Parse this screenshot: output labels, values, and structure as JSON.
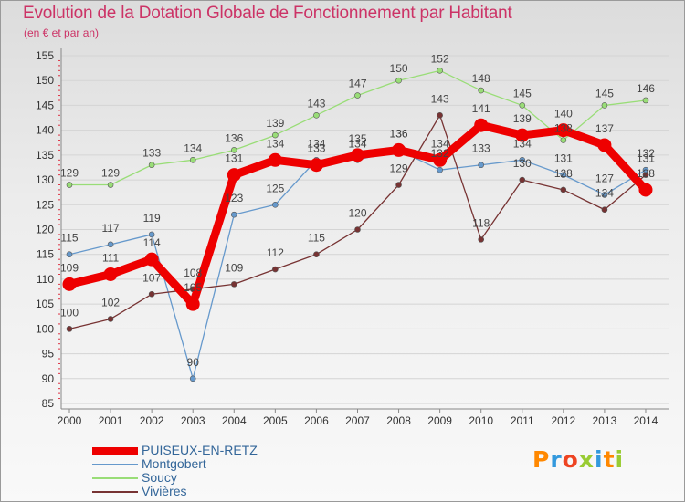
{
  "chart_data": {
    "type": "line",
    "title": "Evolution de la Dotation Globale de Fonctionnement par Habitant",
    "subtitle": "(en € et par an)",
    "categories": [
      "2000",
      "2001",
      "2002",
      "2003",
      "2004",
      "2005",
      "2006",
      "2007",
      "2008",
      "2009",
      "2010",
      "2011",
      "2012",
      "2013",
      "2014"
    ],
    "y_ticks": [
      85,
      90,
      95,
      100,
      105,
      110,
      115,
      120,
      125,
      130,
      135,
      140,
      145,
      150,
      155
    ],
    "ylim": [
      85,
      155
    ],
    "series": [
      {
        "name": "PUISEUX-EN-RETZ",
        "color": "#ee0000",
        "values": [
          109,
          111,
          114,
          105,
          131,
          134,
          133,
          135,
          136,
          134,
          141,
          139,
          140,
          137,
          128
        ]
      },
      {
        "name": "Montgobert",
        "color": "#6699cc",
        "values": [
          115,
          117,
          119,
          90,
          123,
          125,
          134,
          134,
          136,
          132,
          133,
          134,
          131,
          127,
          132
        ]
      },
      {
        "name": "Soucy",
        "color": "#99dd77",
        "values": [
          129,
          129,
          133,
          134,
          136,
          139,
          143,
          147,
          150,
          152,
          148,
          145,
          138,
          145,
          146
        ]
      },
      {
        "name": "Vivières",
        "color": "#773333",
        "values": [
          100,
          102,
          107,
          108,
          109,
          112,
          115,
          120,
          129,
          143,
          118,
          130,
          128,
          124,
          131
        ]
      }
    ]
  },
  "logo": {
    "text": "Proxiti",
    "letter_colors": [
      "#ff8800",
      "#3399dd",
      "#ee4422",
      "#99cc33",
      "#3399dd",
      "#ff8800",
      "#99cc33"
    ]
  }
}
